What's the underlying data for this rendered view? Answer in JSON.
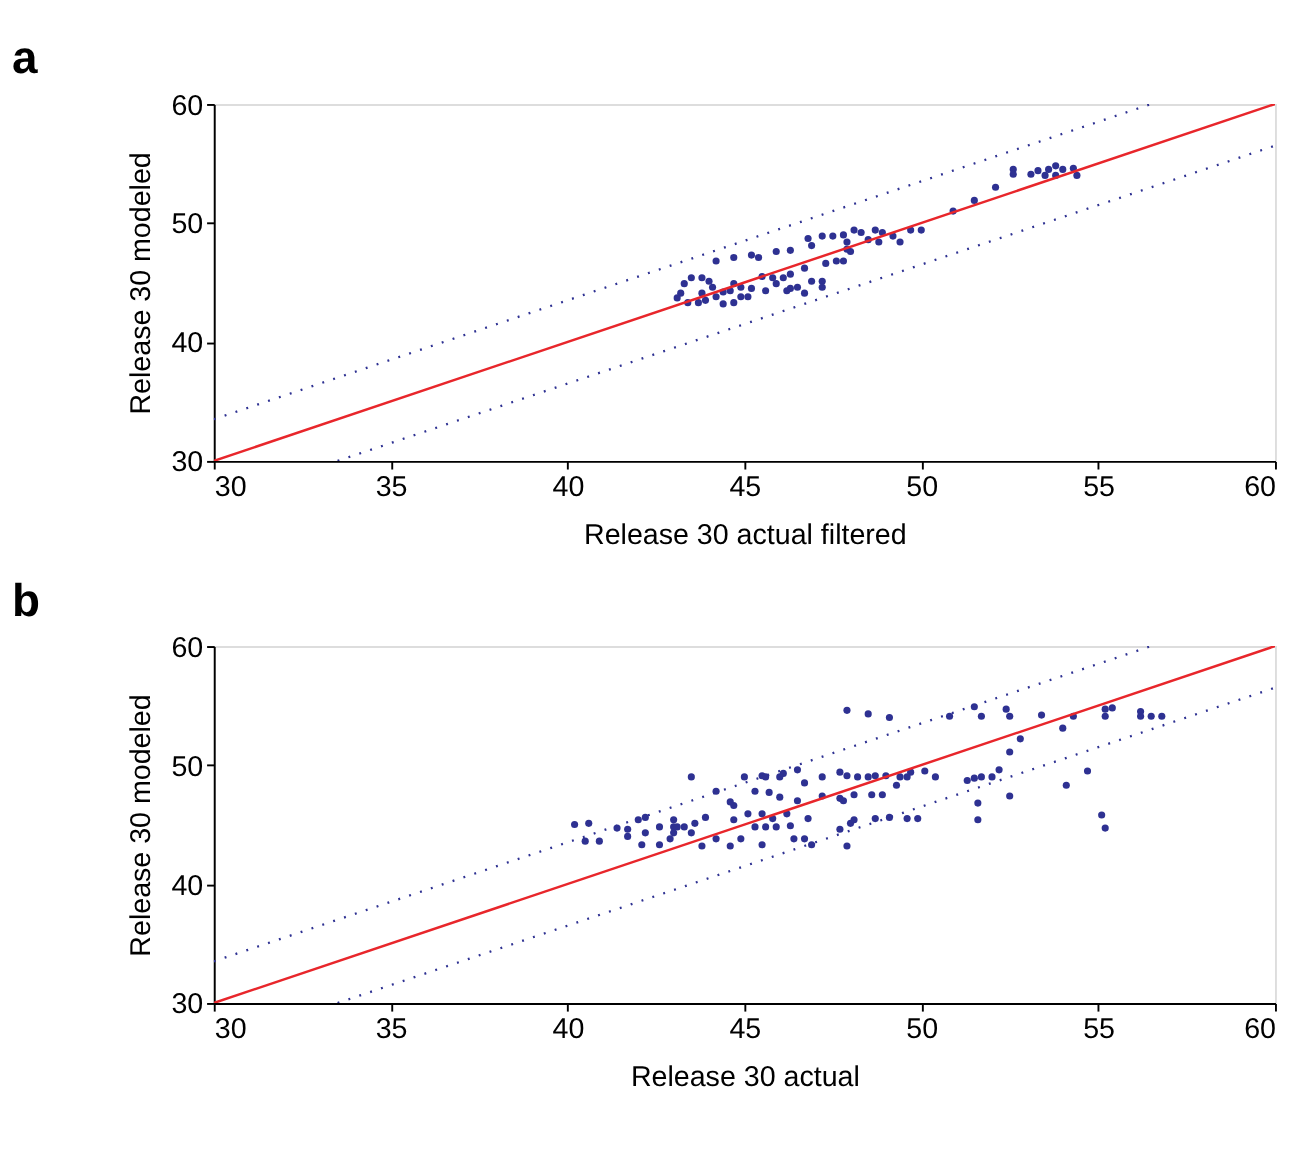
{
  "chart_data": [
    {
      "type": "scatter",
      "title": "a",
      "xlabel": "Release 30 actual filtered",
      "ylabel": "Release 30 modeled",
      "xlim": [
        30,
        60
      ],
      "xticks": [
        30,
        35,
        40,
        45,
        50,
        55,
        60
      ],
      "ylim": [
        30,
        60
      ],
      "yticks": [
        30,
        40,
        50,
        60
      ],
      "grid": false,
      "series": [
        {
          "marker": "circle",
          "color": "#2e3192",
          "x": [
            52.6,
            52.6,
            53.1,
            53.3,
            53.6,
            53.8,
            54.0,
            54.3,
            54.4,
            53.8,
            53.5,
            52.1,
            51.5,
            50.9,
            46.8,
            46.9,
            47.2,
            47.5,
            47.8,
            48.1,
            48.3,
            48.7,
            48.9,
            49.2,
            49.4,
            49.7,
            50.0,
            47.9,
            48.5,
            48.8,
            48.0,
            47.9,
            47.6,
            47.3,
            47.8,
            44.2,
            44.7,
            45.2,
            45.4,
            45.9,
            46.3,
            46.7,
            46.3,
            46.1,
            45.8,
            45.5,
            46.9,
            47.2,
            46.5,
            46.3,
            46.7,
            46.2,
            45.2,
            44.9,
            44.7,
            44.6,
            44.4,
            44.1,
            43.8,
            43.5,
            43.3,
            43.2,
            43.1,
            43.4,
            43.7,
            43.9,
            44.2,
            44.4,
            44.7,
            44.9,
            43.8,
            44.0,
            45.1,
            45.6,
            47.2,
            45.9
          ],
          "values": [
            54.5,
            54.1,
            54.1,
            54.4,
            54.5,
            54.8,
            54.5,
            54.6,
            54.0,
            54.0,
            54.0,
            53.0,
            51.9,
            51.0,
            48.7,
            48.1,
            48.9,
            48.9,
            49.0,
            49.4,
            49.2,
            49.4,
            49.2,
            48.9,
            48.4,
            49.4,
            49.4,
            48.4,
            48.6,
            48.4,
            47.6,
            47.8,
            46.8,
            46.6,
            46.8,
            46.8,
            47.1,
            47.3,
            47.1,
            47.6,
            47.7,
            46.2,
            45.7,
            45.4,
            45.4,
            45.5,
            45.1,
            45.1,
            44.6,
            44.5,
            44.1,
            44.3,
            44.5,
            44.6,
            44.9,
            44.3,
            44.2,
            44.6,
            45.4,
            45.4,
            44.9,
            44.1,
            43.7,
            43.3,
            43.3,
            43.5,
            43.8,
            43.2,
            43.3,
            43.8,
            44.1,
            45.1,
            43.8,
            44.3,
            44.6,
            44.9
          ]
        },
        {
          "type": "line",
          "line_style": "solid",
          "color": "#e8262b",
          "x": [
            30,
            60
          ],
          "values": [
            30,
            60
          ]
        },
        {
          "type": "line",
          "line_style": "dotted",
          "color": "#2e3192",
          "x": [
            30,
            56.5
          ],
          "values": [
            33.5,
            60
          ]
        },
        {
          "type": "line",
          "line_style": "dotted",
          "color": "#2e3192",
          "x": [
            33.5,
            60
          ],
          "values": [
            30,
            56.5
          ]
        }
      ]
    },
    {
      "type": "scatter",
      "title": "b",
      "xlabel": "Release 30 actual",
      "ylabel": "Release 30 modeled",
      "xlim": [
        30,
        60
      ],
      "xticks": [
        30,
        35,
        40,
        45,
        50,
        55,
        60
      ],
      "ylim": [
        30,
        60
      ],
      "yticks": [
        30,
        40,
        50,
        60
      ],
      "grid": false,
      "series": [
        {
          "marker": "circle",
          "color": "#2e3192",
          "x": [
            47.9,
            48.5,
            49.1,
            50.8,
            51.5,
            51.7,
            52.4,
            52.5,
            53.4,
            54.3,
            55.2,
            55.4,
            55.2,
            56.2,
            56.2,
            56.5,
            56.8,
            54.0,
            52.8,
            52.5,
            52.2,
            52.0,
            51.7,
            51.3,
            51.5,
            54.7,
            54.1,
            52.5,
            51.6,
            51.6,
            55.1,
            55.2,
            43.5,
            45.0,
            45.5,
            45.6,
            46.0,
            46.1,
            46.5,
            46.7,
            47.2,
            47.7,
            47.9,
            48.2,
            48.5,
            48.7,
            49.0,
            49.4,
            49.7,
            50.1,
            50.4,
            49.6,
            49.3,
            48.9,
            48.6,
            48.1,
            47.7,
            47.2,
            46.5,
            46.0,
            45.7,
            45.3,
            44.7,
            44.2,
            44.6,
            45.1,
            45.5,
            45.8,
            46.2,
            46.8,
            47.8,
            48.1,
            48.7,
            49.1,
            49.6,
            49.9,
            47.7,
            48.0,
            47.9,
            46.9,
            46.7,
            46.4,
            46.3,
            45.6,
            45.3,
            44.9,
            44.6,
            44.2,
            43.8,
            43.5,
            43.3,
            43.0,
            43.0,
            42.9,
            42.6,
            42.2,
            42.1,
            41.7,
            41.7,
            41.4,
            40.9,
            40.5,
            40.6,
            40.2,
            42.0,
            42.2,
            42.6,
            43.0,
            43.1,
            43.6,
            43.9,
            44.7,
            45.5,
            45.9
          ],
          "values": [
            54.6,
            54.3,
            54.0,
            54.1,
            54.9,
            54.1,
            54.7,
            54.1,
            54.2,
            54.1,
            54.7,
            54.8,
            54.1,
            54.5,
            54.1,
            54.1,
            54.1,
            53.1,
            52.2,
            51.1,
            49.6,
            49.0,
            49.0,
            48.7,
            48.9,
            49.5,
            48.3,
            47.4,
            46.8,
            45.4,
            45.8,
            44.7,
            49.0,
            49.0,
            49.1,
            49.0,
            49.0,
            49.3,
            49.6,
            48.5,
            49.0,
            49.4,
            49.1,
            49.0,
            49.0,
            49.1,
            49.1,
            49.0,
            49.4,
            49.5,
            49.0,
            49.0,
            48.3,
            47.5,
            47.5,
            47.5,
            47.2,
            47.4,
            47.0,
            47.3,
            47.7,
            47.8,
            46.6,
            47.8,
            46.9,
            45.9,
            45.9,
            45.5,
            45.9,
            45.5,
            47.0,
            45.4,
            45.5,
            45.6,
            45.5,
            45.5,
            44.6,
            45.1,
            43.2,
            43.3,
            43.8,
            43.8,
            44.9,
            44.8,
            44.8,
            43.8,
            43.2,
            43.8,
            43.2,
            44.3,
            44.8,
            45.4,
            44.3,
            43.8,
            43.3,
            44.3,
            43.3,
            44.0,
            44.6,
            44.7,
            43.6,
            43.6,
            45.1,
            45.0,
            45.4,
            45.6,
            44.8,
            44.8,
            44.8,
            45.1,
            45.6,
            45.4,
            43.3,
            44.8
          ]
        },
        {
          "type": "line",
          "line_style": "solid",
          "color": "#e8262b",
          "x": [
            30,
            60
          ],
          "values": [
            30,
            60
          ]
        },
        {
          "type": "line",
          "line_style": "dotted",
          "color": "#2e3192",
          "x": [
            30,
            56.5
          ],
          "values": [
            33.5,
            60
          ]
        },
        {
          "type": "line",
          "line_style": "dotted",
          "color": "#2e3192",
          "x": [
            33.5,
            60
          ],
          "values": [
            30,
            56.5
          ]
        }
      ]
    }
  ]
}
